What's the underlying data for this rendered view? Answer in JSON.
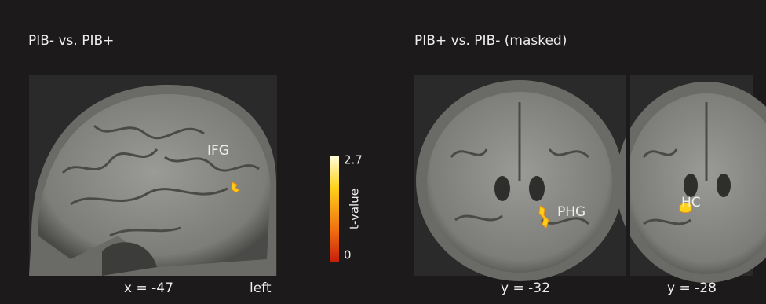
{
  "panels": [
    {
      "title": "PIB- vs. PIB+",
      "views": [
        {
          "coordinate": "x = -47",
          "side": "left",
          "region": "IFG"
        }
      ]
    },
    {
      "title": "PIB+ vs. PIB- (masked)",
      "views": [
        {
          "coordinate": "y = -32",
          "region": "PHG"
        },
        {
          "coordinate": "y = -28",
          "region": "HC"
        }
      ]
    }
  ],
  "colorbar": {
    "label": "t-value",
    "max": 2.7,
    "min": 0
  }
}
